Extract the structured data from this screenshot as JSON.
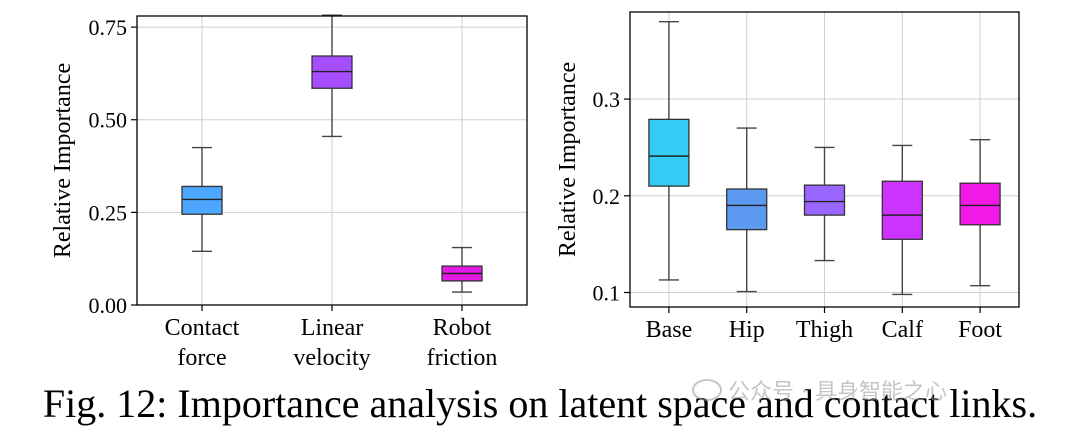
{
  "chart_data": [
    {
      "type": "box",
      "ylabel": "Relative Importance",
      "ylim": [
        0,
        0.78
      ],
      "yticks": [
        0.0,
        0.25,
        0.5,
        0.75
      ],
      "ytick_labels": [
        "0.00",
        "0.25",
        "0.50",
        "0.75"
      ],
      "grid": true,
      "categories": [
        [
          "Contact",
          "force"
        ],
        [
          "Linear",
          "velocity"
        ],
        [
          "Robot",
          "friction"
        ]
      ],
      "boxes": [
        {
          "color": "#4da6ff",
          "whisker_low": 0.145,
          "q1": 0.245,
          "median": 0.285,
          "q3": 0.32,
          "whisker_high": 0.425
        },
        {
          "color": "#a64dff",
          "whisker_low": 0.455,
          "q1": 0.585,
          "median": 0.63,
          "q3": 0.672,
          "whisker_high": 0.782
        },
        {
          "color": "#e61ae6",
          "whisker_low": 0.035,
          "q1": 0.065,
          "median": 0.085,
          "q3": 0.105,
          "whisker_high": 0.155
        }
      ]
    },
    {
      "type": "box",
      "ylabel": "Relative Importance",
      "ylim": [
        0.085,
        0.39
      ],
      "yticks": [
        0.1,
        0.2,
        0.3
      ],
      "ytick_labels": [
        "0.1",
        "0.2",
        "0.3"
      ],
      "grid": true,
      "categories": [
        [
          "Base"
        ],
        [
          "Hip"
        ],
        [
          "Thigh"
        ],
        [
          "Calf"
        ],
        [
          "Foot"
        ]
      ],
      "boxes": [
        {
          "color": "#33ccf5",
          "whisker_low": 0.113,
          "q1": 0.21,
          "median": 0.241,
          "q3": 0.279,
          "whisker_high": 0.38
        },
        {
          "color": "#5c99f2",
          "whisker_low": 0.101,
          "q1": 0.165,
          "median": 0.19,
          "q3": 0.207,
          "whisker_high": 0.27
        },
        {
          "color": "#9966ff",
          "whisker_low": 0.133,
          "q1": 0.18,
          "median": 0.194,
          "q3": 0.211,
          "whisker_high": 0.25
        },
        {
          "color": "#cc33ff",
          "whisker_low": 0.098,
          "q1": 0.155,
          "median": 0.18,
          "q3": 0.215,
          "whisker_high": 0.252
        },
        {
          "color": "#f019e6",
          "whisker_low": 0.107,
          "q1": 0.17,
          "median": 0.19,
          "q3": 0.213,
          "whisker_high": 0.258
        }
      ]
    }
  ],
  "caption": "Fig. 12: Importance analysis on latent space and contact links.",
  "watermark": "公众号 · 具身智能之心",
  "watermark_icon": "wechat-icon"
}
